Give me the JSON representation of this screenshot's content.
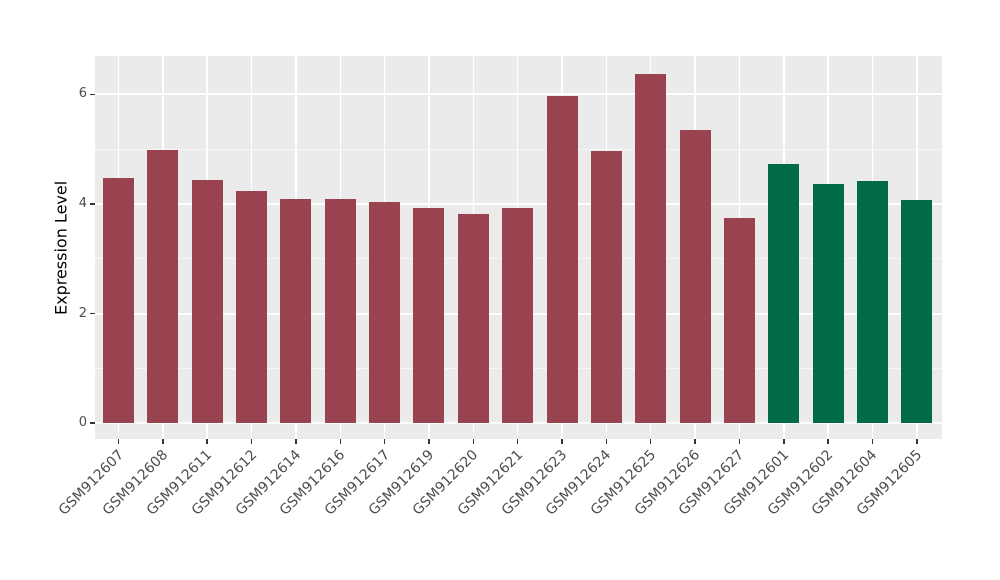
{
  "figure": {
    "background_color": "#ffffff"
  },
  "panel": {
    "background_color": "#ebebeb",
    "grid_major_color": "#ffffff",
    "grid_minor_color": "#ffffff"
  },
  "axis": {
    "tick_mark_color": "#333333",
    "tick_label_color": "#4d4d4d",
    "title_color": "#000000"
  },
  "chart_data": {
    "type": "bar",
    "title": "",
    "xlabel": "",
    "ylabel": "Expression Level",
    "categories": [
      "GSM912607",
      "GSM912608",
      "GSM912611",
      "GSM912612",
      "GSM912614",
      "GSM912616",
      "GSM912617",
      "GSM912619",
      "GSM912620",
      "GSM912621",
      "GSM912623",
      "GSM912624",
      "GSM912625",
      "GSM912626",
      "GSM912627",
      "GSM912601",
      "GSM912602",
      "GSM912604",
      "GSM912605"
    ],
    "values": [
      4.47,
      4.98,
      4.43,
      4.23,
      4.09,
      4.09,
      4.03,
      3.92,
      3.81,
      3.92,
      5.97,
      4.96,
      6.37,
      5.35,
      3.74,
      4.73,
      4.36,
      4.42,
      4.07
    ],
    "bar_groups": [
      "group1",
      "group1",
      "group1",
      "group1",
      "group1",
      "group1",
      "group1",
      "group1",
      "group1",
      "group1",
      "group1",
      "group1",
      "group1",
      "group1",
      "group1",
      "group2",
      "group2",
      "group2",
      "group2"
    ],
    "group_colors": {
      "group1": "#9a4350",
      "group2": "#006b46"
    },
    "yticks": [
      0,
      2,
      4,
      6
    ],
    "yticks_minor": [
      1,
      3,
      5
    ],
    "ylim": [
      -0.29,
      6.7
    ],
    "grid": "on",
    "legend_position": "none",
    "x_label_angle_deg": 45
  }
}
